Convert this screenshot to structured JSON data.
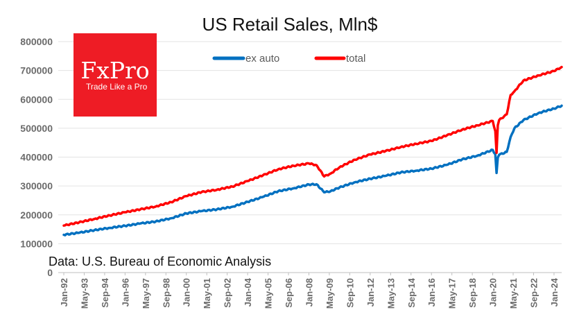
{
  "chart_data": {
    "type": "line",
    "title": "US Retail Sales, Mln$",
    "xlabel": "",
    "ylabel": "",
    "ylim": [
      0,
      800000
    ],
    "yticks": [
      "0",
      "100000",
      "200000",
      "300000",
      "400000",
      "500000",
      "600000",
      "700000",
      "800000"
    ],
    "xticks": [
      "Jan-92",
      "May-93",
      "Sep-94",
      "Jan-96",
      "May-97",
      "Sep-98",
      "Jan-00",
      "May-01",
      "Sep-02",
      "Jan-04",
      "May-05",
      "Sep-06",
      "Jan-08",
      "May-09",
      "Sep-10",
      "Jan-12",
      "May-13",
      "Sep-14",
      "Jan-16",
      "May-17",
      "Sep-18",
      "Jan-20",
      "May-21",
      "Sep-22",
      "Jan-24"
    ],
    "x": [
      "1992-01",
      "1993-01",
      "1994-01",
      "1995-01",
      "1996-01",
      "1997-01",
      "1998-01",
      "1999-01",
      "2000-01",
      "2001-01",
      "2002-01",
      "2003-01",
      "2004-01",
      "2005-01",
      "2006-01",
      "2007-01",
      "2008-01",
      "2008-07",
      "2009-01",
      "2009-06",
      "2010-01",
      "2011-01",
      "2012-01",
      "2013-01",
      "2014-01",
      "2015-01",
      "2016-01",
      "2017-01",
      "2018-01",
      "2019-01",
      "2020-01",
      "2020-03",
      "2020-04",
      "2020-05",
      "2020-06",
      "2020-12",
      "2021-03",
      "2021-06",
      "2022-01",
      "2023-01",
      "2024-01",
      "2024-07"
    ],
    "series": [
      {
        "name": "ex auto",
        "color": "#0070c0",
        "values": [
          131000,
          138000,
          147000,
          155000,
          162000,
          170000,
          177000,
          188000,
          205000,
          213000,
          219000,
          228000,
          245000,
          262000,
          282000,
          292000,
          305000,
          306000,
          278000,
          282000,
          295000,
          313000,
          325000,
          335000,
          347000,
          353000,
          360000,
          373000,
          392000,
          405000,
          425000,
          410000,
          345000,
          398000,
          408000,
          418000,
          470000,
          500000,
          528000,
          553000,
          568000,
          578000
        ]
      },
      {
        "name": "total",
        "color": "#ff0000",
        "values": [
          163000,
          174000,
          186000,
          198000,
          209000,
          219000,
          229000,
          244000,
          265000,
          279000,
          287000,
          298000,
          317000,
          337000,
          358000,
          370000,
          378000,
          372000,
          333000,
          343000,
          365000,
          391000,
          409000,
          421000,
          435000,
          446000,
          456000,
          475000,
          495000,
          510000,
          525000,
          490000,
          415000,
          510000,
          528000,
          548000,
          615000,
          628000,
          665000,
          683000,
          698000,
          712000
        ]
      }
    ],
    "legend": [
      "ex auto",
      "total"
    ],
    "legend_position": "top",
    "grid": true,
    "source": "Data: U.S. Bureau of Economic Analysis"
  },
  "logo": {
    "name": "FxPro",
    "tagline": "Trade Like a Pro",
    "color": "#ee1c25"
  }
}
